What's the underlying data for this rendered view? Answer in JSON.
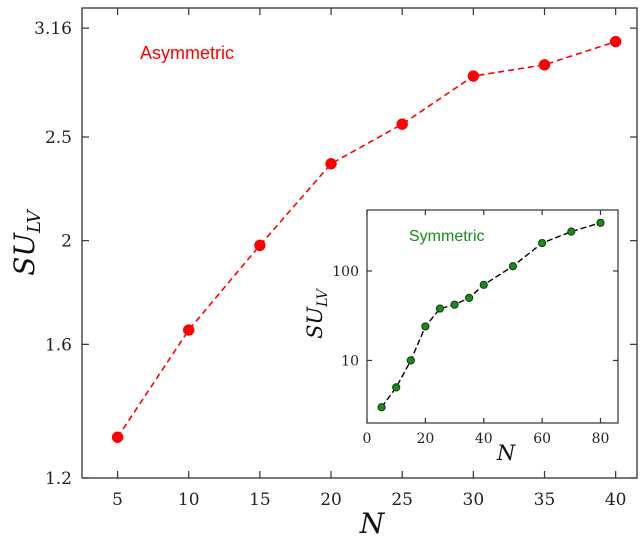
{
  "chart_data": [
    {
      "type": "line",
      "title": "",
      "xlabel": "N",
      "ylabel": "SU",
      "ylabel_sub": "LV",
      "annotation": "Asymmetric",
      "color": "#ff0000",
      "y_scale": "log",
      "xlim": [
        2.5,
        41.5
      ],
      "ylim": [
        1.2,
        3.3
      ],
      "x_ticks": [
        5,
        10,
        15,
        20,
        25,
        30,
        35,
        40
      ],
      "y_ticks": [
        1.2,
        1.6,
        2,
        2.5,
        3.16
      ],
      "x_tick_labels": [
        "5",
        "10",
        "15",
        "20",
        "25",
        "30",
        "35",
        "40"
      ],
      "y_tick_labels": [
        "1.2",
        "1.6",
        "2",
        "2.5",
        "3.16"
      ],
      "series": [
        {
          "x": [
            5,
            10,
            15,
            20,
            25,
            30,
            35,
            40
          ],
          "values": [
            1.31,
            1.65,
            1.98,
            2.36,
            2.57,
            2.85,
            2.92,
            3.07
          ]
        }
      ]
    },
    {
      "type": "line",
      "title": "",
      "xlabel": "N",
      "ylabel": "SU",
      "ylabel_sub": "LV",
      "annotation": "Symmetric",
      "color": "#1a8a1a",
      "y_scale": "log",
      "xlim": [
        0,
        86
      ],
      "ylim": [
        2,
        480
      ],
      "x_ticks": [
        0,
        20,
        40,
        60,
        80
      ],
      "y_ticks": [
        10,
        100
      ],
      "x_tick_labels": [
        "0",
        "20",
        "40",
        "60",
        "80"
      ],
      "y_tick_labels": [
        "10",
        "100"
      ],
      "series": [
        {
          "x": [
            5,
            10,
            15,
            20,
            25,
            30,
            35,
            40,
            50,
            60,
            70,
            80
          ],
          "values": [
            3,
            5,
            10,
            24,
            38,
            42,
            50,
            70,
            113,
            205,
            275,
            345
          ]
        }
      ]
    }
  ]
}
